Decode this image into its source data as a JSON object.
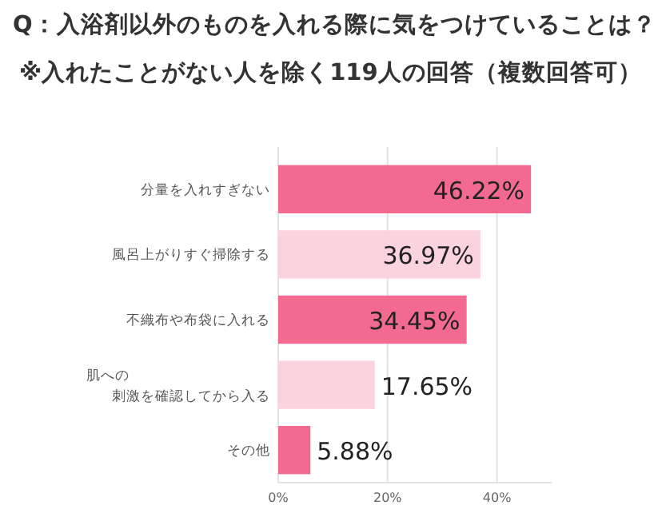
{
  "chart_data": {
    "type": "bar",
    "orientation": "horizontal",
    "title": "Q：入浴剤以外のものを入れる際に気をつけていることは？",
    "subtitle": "※入れたことがない人を除く119人の回答（複数回答可）",
    "categories": [
      "分量を入れすぎない",
      "風呂上がりすぐ掃除する",
      "不織布や布袋に入れる",
      "肌への刺激を確認してから入る",
      "その他"
    ],
    "values": [
      46.22,
      36.97,
      34.45,
      17.65,
      5.88
    ],
    "colors": [
      "#f26a90",
      "#fbd3de",
      "#f26a90",
      "#fbd3de",
      "#f26a90"
    ],
    "value_labels": [
      "46.22%",
      "36.97%",
      "34.45%",
      "17.65%",
      "5.88%"
    ],
    "xlim": [
      0,
      50
    ],
    "xticks": [
      {
        "value": 0,
        "label": "0%"
      },
      {
        "value": 20,
        "label": "20%"
      },
      {
        "value": 40,
        "label": "40%"
      }
    ],
    "grid": "x"
  }
}
